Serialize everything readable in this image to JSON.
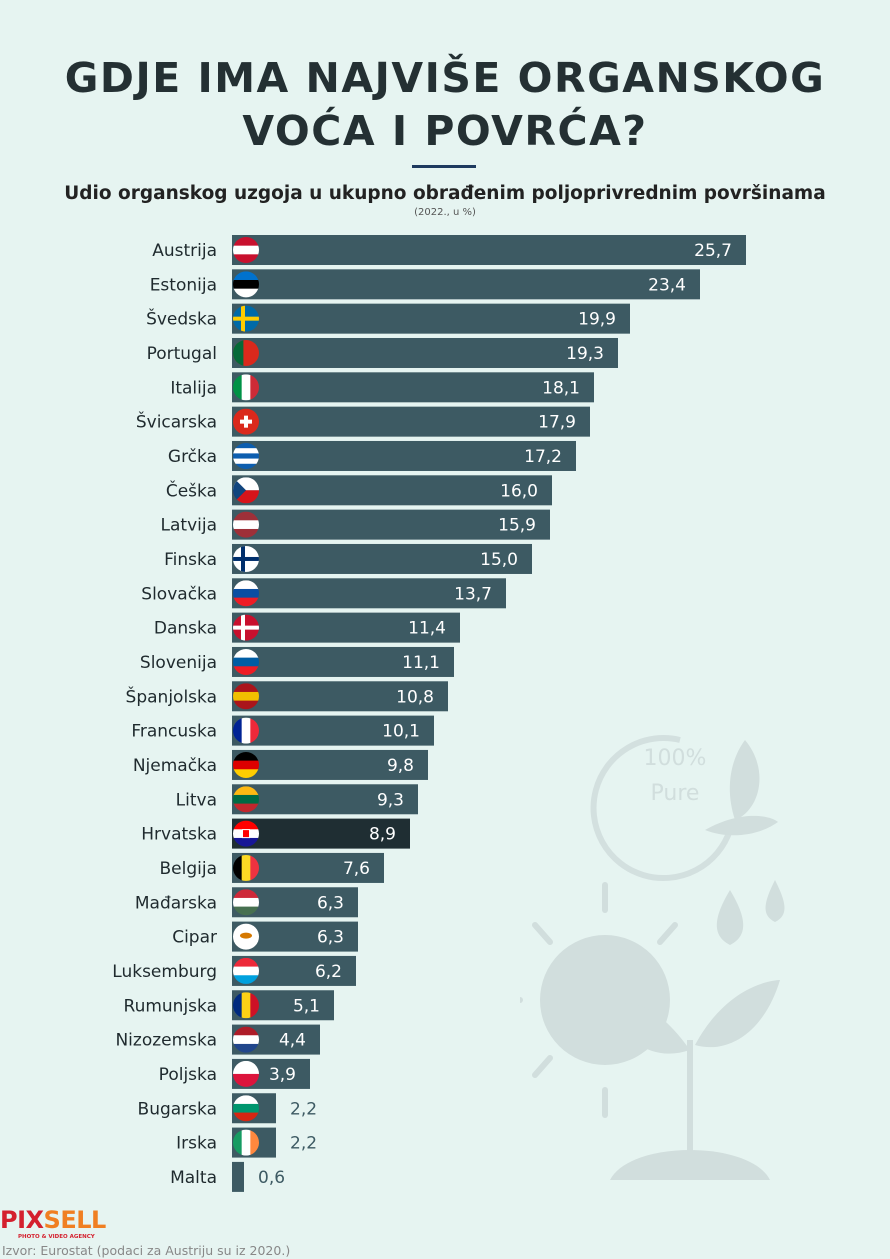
{
  "title_line1": "GDJE IMA NAJVIŠE ORGANSKOG",
  "title_line2": "VOĆA I POVRĆA?",
  "subtitle": "Udio organskog uzgoja u ukupno obrađenim poljoprivrednim površinama",
  "note": "(2022., u %)",
  "source": "Izvor: Eurostat (podaci za Austriju su iz 2020.)",
  "logo": {
    "part1": "PIX",
    "part2": "SELL",
    "tagline": "PHOTO & VIDEO AGENCY"
  },
  "decoration_text": {
    "line1": "100%",
    "line2": "Pure"
  },
  "colors": {
    "bar": "#3d5a63",
    "highlight": "#1f2e33",
    "background": "#e6f4f1"
  },
  "chart_data": {
    "type": "bar",
    "orientation": "horizontal",
    "title": "Udio organskog uzgoja u ukupno obrađenim poljoprivrednim površinama",
    "subtitle": "(2022., u %)",
    "categories": [
      "Austrija",
      "Estonija",
      "Švedska",
      "Portugal",
      "Italija",
      "Švicarska",
      "Grčka",
      "Češka",
      "Latvija",
      "Finska",
      "Slovačka",
      "Danska",
      "Slovenija",
      "Španjolska",
      "Francuska",
      "Njemačka",
      "Litva",
      "Hrvatska",
      "Belgija",
      "Mađarska",
      "Cipar",
      "Luksemburg",
      "Rumunjska",
      "Nizozemska",
      "Poljska",
      "Bugarska",
      "Irska",
      "Malta"
    ],
    "values": [
      25.7,
      23.4,
      19.9,
      19.3,
      18.1,
      17.9,
      17.2,
      16.0,
      15.9,
      15.0,
      13.7,
      11.4,
      11.1,
      10.8,
      10.1,
      9.8,
      9.3,
      8.9,
      7.6,
      6.3,
      6.3,
      6.2,
      5.1,
      4.4,
      3.9,
      2.2,
      2.2,
      0.6
    ],
    "labels": [
      "25,7",
      "23,4",
      "19,9",
      "19,3",
      "18,1",
      "17,9",
      "17,2",
      "16,0",
      "15,9",
      "15,0",
      "13,7",
      "11,4",
      "11,1",
      "10,8",
      "10,1",
      "9,8",
      "9,3",
      "8,9",
      "7,6",
      "6,3",
      "6,3",
      "6,2",
      "5,1",
      "4,4",
      "3,9",
      "2,2",
      "2,2",
      "0,6"
    ],
    "highlight": "Hrvatska",
    "xlim": [
      0,
      25.7
    ],
    "grid": false,
    "flags": [
      {
        "dir": "h",
        "c": [
          "#c8102e",
          "#ffffff",
          "#c8102e"
        ]
      },
      {
        "dir": "h",
        "c": [
          "#0072ce",
          "#000000",
          "#ffffff"
        ]
      },
      {
        "dir": "cross",
        "c": [
          "#006aa7",
          "#fecc00"
        ]
      },
      {
        "dir": "v2",
        "c": [
          "#046a38",
          "#da291c"
        ]
      },
      {
        "dir": "v",
        "c": [
          "#009246",
          "#ffffff",
          "#ce2b37"
        ]
      },
      {
        "dir": "swiss",
        "c": [
          "#da291c",
          "#ffffff"
        ]
      },
      {
        "dir": "h",
        "c": [
          "#0d5eaf",
          "#ffffff",
          "#0d5eaf",
          "#ffffff",
          "#0d5eaf"
        ]
      },
      {
        "dir": "czech",
        "c": [
          "#ffffff",
          "#d7141a",
          "#11457e"
        ]
      },
      {
        "dir": "h",
        "c": [
          "#9e3039",
          "#ffffff",
          "#9e3039"
        ]
      },
      {
        "dir": "cross",
        "c": [
          "#ffffff",
          "#002f6c"
        ]
      },
      {
        "dir": "h",
        "c": [
          "#ffffff",
          "#0b4ea2",
          "#ee1c25"
        ]
      },
      {
        "dir": "cross",
        "c": [
          "#c8102e",
          "#ffffff"
        ]
      },
      {
        "dir": "h",
        "c": [
          "#ffffff",
          "#005da4",
          "#ed1c24"
        ]
      },
      {
        "dir": "h",
        "c": [
          "#aa151b",
          "#f1bf00",
          "#aa151b"
        ]
      },
      {
        "dir": "v",
        "c": [
          "#002395",
          "#ffffff",
          "#ed2939"
        ]
      },
      {
        "dir": "h",
        "c": [
          "#000000",
          "#dd0000",
          "#ffce00"
        ]
      },
      {
        "dir": "h",
        "c": [
          "#fdb913",
          "#006a44",
          "#c1272d"
        ]
      },
      {
        "dir": "h",
        "c": [
          "#ff0000",
          "#ffffff",
          "#171796"
        ]
      },
      {
        "dir": "v",
        "c": [
          "#000000",
          "#fdda24",
          "#ef3340"
        ]
      },
      {
        "dir": "h",
        "c": [
          "#ce2939",
          "#ffffff",
          "#477050"
        ]
      },
      {
        "dir": "h",
        "c": [
          "#ffffff",
          "#ffffff",
          "#ffffff"
        ]
      },
      {
        "dir": "h",
        "c": [
          "#ed2939",
          "#ffffff",
          "#00a1de"
        ]
      },
      {
        "dir": "v",
        "c": [
          "#002b7f",
          "#fcd116",
          "#ce1126"
        ]
      },
      {
        "dir": "h",
        "c": [
          "#ae1c28",
          "#ffffff",
          "#21468b"
        ]
      },
      {
        "dir": "h",
        "c": [
          "#ffffff",
          "#dc143c"
        ]
      },
      {
        "dir": "h",
        "c": [
          "#ffffff",
          "#00966e",
          "#d62612"
        ]
      },
      {
        "dir": "v",
        "c": [
          "#169b62",
          "#ffffff",
          "#ff883e"
        ]
      },
      {
        "dir": "v2",
        "c": [
          "#ffffff",
          "#cf142b"
        ]
      }
    ]
  }
}
